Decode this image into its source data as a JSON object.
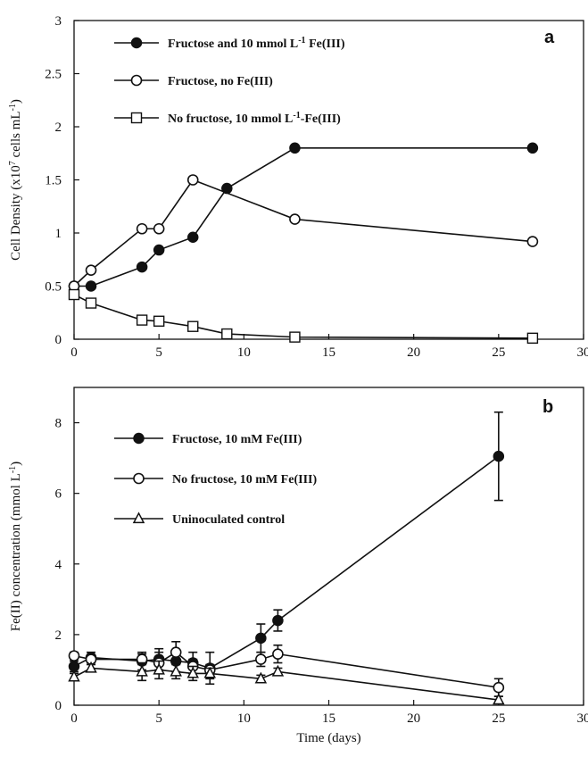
{
  "chart_data": [
    {
      "type": "line",
      "panel_label": "a",
      "xlabel": "",
      "ylabel": "Cell Density (x10 7 cells mL-1)",
      "ylabel_parts": {
        "pre": "Cell Density (x10",
        "sup": "7",
        "mid": " cells mL",
        "sup2": "-1",
        "post": ")"
      },
      "xlim": [
        0,
        30
      ],
      "ylim": [
        0,
        3
      ],
      "xticks": [
        "0",
        "5",
        "10",
        "15",
        "20",
        "25",
        "30"
      ],
      "yticks": [
        "0",
        "0.5",
        "1",
        "1.5",
        "2",
        "2.5",
        "3"
      ],
      "legend_position": "top-left",
      "series": [
        {
          "name": "Fructose and 10 mmol L-1 Fe(III)",
          "name_parts": {
            "pre": "Fructose and 10 mmol L",
            "sup": "-1",
            "post": " Fe(III)"
          },
          "marker": "filled-circle",
          "x": [
            0,
            1,
            4,
            5,
            7,
            9,
            13,
            27
          ],
          "y": [
            0.5,
            0.5,
            0.68,
            0.84,
            0.96,
            1.42,
            1.8,
            1.8
          ]
        },
        {
          "name": "Fructose, no Fe(III)",
          "name_parts": {
            "pre": "Fructose, no Fe(III)",
            "sup": "",
            "post": ""
          },
          "marker": "open-circle",
          "x": [
            0,
            1,
            4,
            5,
            7,
            13,
            27
          ],
          "y": [
            0.5,
            0.65,
            1.04,
            1.04,
            1.5,
            1.13,
            0.92
          ]
        },
        {
          "name": "No fructose, 10 mmol L-1 Fe(III)",
          "name_parts": {
            "pre": "No fructose, 10 mmol L",
            "sup": "-1",
            "post": "-Fe(III)"
          },
          "marker": "open-square",
          "x": [
            0,
            1,
            4,
            5,
            7,
            9,
            13,
            27
          ],
          "y": [
            0.42,
            0.34,
            0.18,
            0.17,
            0.12,
            0.05,
            0.02,
            0.01
          ]
        }
      ]
    },
    {
      "type": "line",
      "panel_label": "b",
      "xlabel": "Time (days)",
      "ylabel": "Fe(II) concentration (mmol L-1)",
      "ylabel_parts": {
        "pre": "Fe(II) concentration (mmol L",
        "sup": "-1",
        "mid": "",
        "sup2": "",
        "post": ")"
      },
      "xlim": [
        0,
        30
      ],
      "ylim": [
        0,
        9
      ],
      "xticks": [
        "0",
        "5",
        "10",
        "15",
        "20",
        "25",
        "30"
      ],
      "yticks": [
        "0",
        "2",
        "4",
        "6",
        "8"
      ],
      "ytick_values": [
        0,
        2,
        4,
        6,
        8
      ],
      "legend_position": "top-left",
      "series": [
        {
          "name": "Fructose, 10 mM Fe(III)",
          "name_parts": {
            "pre": "Fructose, 10 mM Fe(III)",
            "sup": "",
            "post": ""
          },
          "marker": "filled-circle",
          "x": [
            0,
            1,
            4,
            5,
            6,
            7,
            8,
            11,
            12,
            25
          ],
          "y": [
            1.1,
            1.35,
            1.25,
            1.3,
            1.25,
            1.2,
            1.05,
            1.9,
            2.4,
            7.05
          ],
          "err": [
            0.15,
            0.15,
            0.25,
            0.3,
            0.3,
            0.3,
            0.45,
            0.4,
            0.3,
            1.25
          ]
        },
        {
          "name": "No fructose, 10 mM Fe(III)",
          "name_parts": {
            "pre": "No fructose, 10 mM Fe(III)",
            "sup": "",
            "post": ""
          },
          "marker": "open-circle",
          "x": [
            0,
            1,
            4,
            5,
            6,
            7,
            8,
            11,
            12,
            25
          ],
          "y": [
            1.4,
            1.3,
            1.3,
            1.2,
            1.5,
            1.1,
            1.0,
            1.3,
            1.45,
            0.5
          ],
          "err": [
            0.1,
            0.1,
            0.15,
            0.3,
            0.3,
            0.2,
            0.15,
            0.2,
            0.25,
            0.25
          ]
        },
        {
          "name": "Uninoculated control",
          "name_parts": {
            "pre": "Uninoculated control",
            "sup": "",
            "post": ""
          },
          "marker": "open-triangle",
          "x": [
            0,
            1,
            4,
            5,
            6,
            7,
            8,
            11,
            12,
            25
          ],
          "y": [
            0.8,
            1.05,
            0.95,
            1.0,
            0.95,
            0.9,
            0.9,
            0.75,
            0.95,
            0.15
          ],
          "err": [
            0.1,
            0.1,
            0.25,
            0.25,
            0.2,
            0.2,
            0.15,
            0.1,
            0.1,
            0.1
          ]
        }
      ]
    }
  ]
}
